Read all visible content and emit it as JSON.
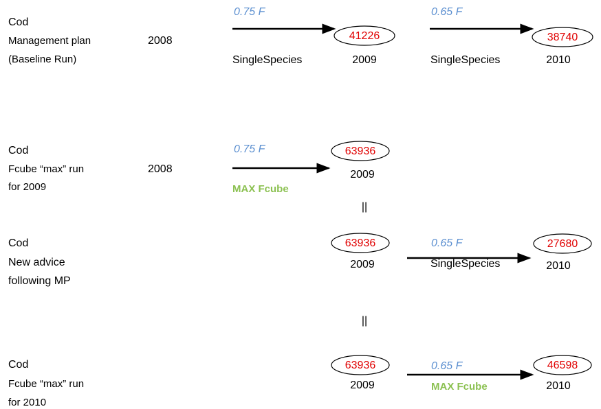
{
  "rows": [
    {
      "label": [
        "Cod",
        "Management plan",
        "(Baseline Run)"
      ],
      "start_year": 2008,
      "steps": [
        {
          "f": "0.75 F",
          "method": "SingleSpecies",
          "value": 41226,
          "year": 2009
        },
        {
          "f": "0.65 F",
          "method": "SingleSpecies",
          "value": 38740,
          "year": 2010
        }
      ]
    },
    {
      "label": [
        "Cod",
        "Fcube “max” run",
        "for 2009"
      ],
      "start_year": 2008,
      "steps": [
        {
          "f": "0.75 F",
          "method": "MAX Fcube",
          "value": 63936,
          "year": 2009
        }
      ]
    },
    {
      "label": [
        "Cod",
        "New advice",
        "following MP"
      ],
      "start": {
        "value": 63936,
        "year": 2009
      },
      "steps": [
        {
          "f": "0.65 F",
          "method": "SingleSpecies",
          "value": 27680,
          "year": 2010
        }
      ]
    },
    {
      "label": [
        "Cod",
        "Fcube “max” run",
        "for 2010"
      ],
      "start": {
        "value": 63936,
        "year": 2009
      },
      "steps": [
        {
          "f": "0.65 F",
          "method": "MAX Fcube",
          "value": 46598,
          "year": 2010
        }
      ]
    }
  ],
  "separators": [
    "||",
    "||"
  ]
}
